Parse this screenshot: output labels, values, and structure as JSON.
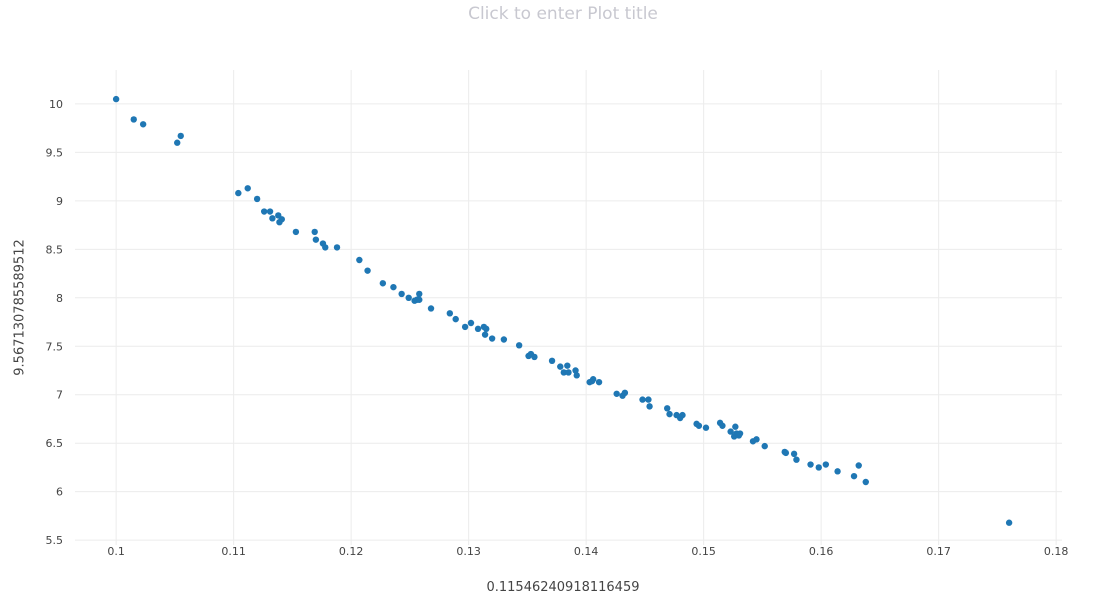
{
  "chart_data": {
    "type": "scatter",
    "title": "Click to enter Plot title",
    "xlabel": "0.11546240918116459",
    "ylabel": "9.567130785589512",
    "xlim": [
      0.0965,
      0.1805
    ],
    "ylim": [
      5.45,
      10.35
    ],
    "x_ticks": [
      0.1,
      0.11,
      0.12,
      0.13,
      0.14,
      0.15,
      0.16,
      0.17,
      0.18
    ],
    "y_ticks": [
      5.5,
      6,
      6.5,
      7,
      7.5,
      8,
      8.5,
      9,
      9.5,
      10
    ],
    "x_tick_labels": [
      "0.1",
      "0.11",
      "0.12",
      "0.13",
      "0.14",
      "0.15",
      "0.16",
      "0.17",
      "0.18"
    ],
    "y_tick_labels": [
      "5.5",
      "6",
      "6.5",
      "7",
      "7.5",
      "8",
      "8.5",
      "9",
      "9.5",
      "10"
    ],
    "grid": true,
    "marker_color": "#1f77b4",
    "series": [
      {
        "points": [
          [
            0.1,
            10.05
          ],
          [
            0.1015,
            9.84
          ],
          [
            0.1023,
            9.79
          ],
          [
            0.1052,
            9.6
          ],
          [
            0.1055,
            9.67
          ],
          [
            0.1104,
            9.08
          ],
          [
            0.1112,
            9.13
          ],
          [
            0.112,
            9.02
          ],
          [
            0.1126,
            8.89
          ],
          [
            0.1131,
            8.89
          ],
          [
            0.1133,
            8.82
          ],
          [
            0.1138,
            8.85
          ],
          [
            0.1139,
            8.78
          ],
          [
            0.1141,
            8.81
          ],
          [
            0.1153,
            8.68
          ],
          [
            0.1169,
            8.68
          ],
          [
            0.117,
            8.6
          ],
          [
            0.1176,
            8.56
          ],
          [
            0.1178,
            8.52
          ],
          [
            0.1188,
            8.52
          ],
          [
            0.1207,
            8.39
          ],
          [
            0.1214,
            8.28
          ],
          [
            0.1227,
            8.15
          ],
          [
            0.1236,
            8.11
          ],
          [
            0.1243,
            8.04
          ],
          [
            0.1249,
            8.0
          ],
          [
            0.1254,
            7.97
          ],
          [
            0.1256,
            7.98
          ],
          [
            0.1258,
            8.04
          ],
          [
            0.1258,
            7.98
          ],
          [
            0.1268,
            7.89
          ],
          [
            0.1284,
            7.84
          ],
          [
            0.1289,
            7.78
          ],
          [
            0.1297,
            7.7
          ],
          [
            0.1302,
            7.74
          ],
          [
            0.1308,
            7.68
          ],
          [
            0.1313,
            7.7
          ],
          [
            0.1314,
            7.62
          ],
          [
            0.1315,
            7.68
          ],
          [
            0.132,
            7.58
          ],
          [
            0.133,
            7.57
          ],
          [
            0.1343,
            7.51
          ],
          [
            0.1351,
            7.4
          ],
          [
            0.1353,
            7.42
          ],
          [
            0.1356,
            7.39
          ],
          [
            0.1371,
            7.35
          ],
          [
            0.1378,
            7.29
          ],
          [
            0.1381,
            7.23
          ],
          [
            0.1384,
            7.3
          ],
          [
            0.1385,
            7.23
          ],
          [
            0.1391,
            7.25
          ],
          [
            0.1392,
            7.2
          ],
          [
            0.1403,
            7.13
          ],
          [
            0.1405,
            7.14
          ],
          [
            0.1406,
            7.16
          ],
          [
            0.1411,
            7.13
          ],
          [
            0.1426,
            7.01
          ],
          [
            0.1431,
            6.99
          ],
          [
            0.1433,
            7.02
          ],
          [
            0.1448,
            6.95
          ],
          [
            0.1453,
            6.95
          ],
          [
            0.1454,
            6.88
          ],
          [
            0.1469,
            6.86
          ],
          [
            0.1471,
            6.8
          ],
          [
            0.1477,
            6.79
          ],
          [
            0.148,
            6.76
          ],
          [
            0.1482,
            6.79
          ],
          [
            0.1494,
            6.7
          ],
          [
            0.1496,
            6.68
          ],
          [
            0.1502,
            6.66
          ],
          [
            0.1514,
            6.71
          ],
          [
            0.1516,
            6.68
          ],
          [
            0.1523,
            6.62
          ],
          [
            0.1526,
            6.57
          ],
          [
            0.1527,
            6.67
          ],
          [
            0.1528,
            6.6
          ],
          [
            0.153,
            6.58
          ],
          [
            0.1531,
            6.6
          ],
          [
            0.1542,
            6.52
          ],
          [
            0.1545,
            6.54
          ],
          [
            0.1552,
            6.47
          ],
          [
            0.1569,
            6.41
          ],
          [
            0.157,
            6.4
          ],
          [
            0.1577,
            6.39
          ],
          [
            0.1579,
            6.33
          ],
          [
            0.1591,
            6.28
          ],
          [
            0.1598,
            6.25
          ],
          [
            0.1604,
            6.28
          ],
          [
            0.1614,
            6.21
          ],
          [
            0.1628,
            6.16
          ],
          [
            0.1632,
            6.27
          ],
          [
            0.1638,
            6.1
          ],
          [
            0.176,
            5.68
          ]
        ]
      }
    ]
  }
}
